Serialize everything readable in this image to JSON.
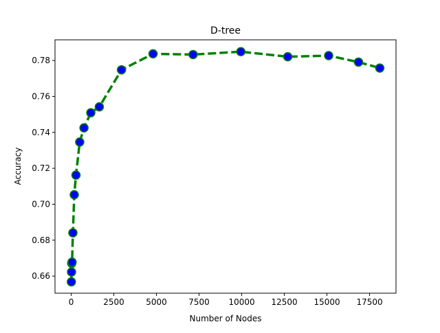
{
  "chart_data": {
    "type": "line",
    "title": "D-tree",
    "xlabel": "Number of Nodes",
    "ylabel": "Accuracy",
    "xlim": [
      -950,
      19050
    ],
    "ylim": [
      0.6505,
      0.7915
    ],
    "xticks": [
      0,
      2500,
      5000,
      7500,
      10000,
      12500,
      15000,
      17500
    ],
    "xtick_labels": [
      "0",
      "2500",
      "5000",
      "7500",
      "10000",
      "12500",
      "15000",
      "17500"
    ],
    "yticks": [
      0.66,
      0.68,
      0.7,
      0.72,
      0.74,
      0.76,
      0.78
    ],
    "ytick_labels": [
      "0.66",
      "0.68",
      "0.70",
      "0.72",
      "0.74",
      "0.76",
      "0.78"
    ],
    "series": [
      {
        "line_color": "#008000",
        "line_style": "dashed",
        "marker": "circle",
        "marker_fill": "#0000ff",
        "marker_edge": "#008000",
        "x": [
          10,
          20,
          30,
          50,
          100,
          180,
          280,
          500,
          750,
          1150,
          1650,
          2950,
          4800,
          7150,
          9950,
          12700,
          15100,
          16850,
          18100
        ],
        "y": [
          0.6568,
          0.6623,
          0.6671,
          0.6678,
          0.6841,
          0.7053,
          0.7162,
          0.7346,
          0.7425,
          0.7509,
          0.7542,
          0.7748,
          0.7837,
          0.7833,
          0.7849,
          0.7821,
          0.7827,
          0.7791,
          0.7758
        ]
      }
    ]
  }
}
